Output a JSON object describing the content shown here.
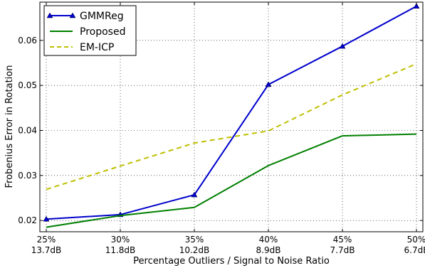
{
  "chart_data": {
    "type": "line",
    "xlabel": "Percentage Outliers / Signal to Noise Ratio",
    "ylabel": "Frobenius Error in Rotation",
    "categories": [
      {
        "top": "25%",
        "bottom": "13.7dB"
      },
      {
        "top": "30%",
        "bottom": "11.8dB"
      },
      {
        "top": "35%",
        "bottom": "10.2dB"
      },
      {
        "top": "40%",
        "bottom": "8.9dB"
      },
      {
        "top": "45%",
        "bottom": "7.7dB"
      },
      {
        "top": "50%",
        "bottom": "6.7dB"
      }
    ],
    "ylim": [
      0.0175,
      0.0685
    ],
    "yticks": [
      "0.02",
      "0.03",
      "0.04",
      "0.05",
      "0.06"
    ],
    "ytick_values": [
      0.02,
      0.03,
      0.04,
      0.05,
      0.06
    ],
    "grid": true,
    "legend_position": "top-left",
    "series": [
      {
        "name": "GMMReg",
        "color": "#0000cc",
        "style": "solid",
        "marker": "triangle",
        "values": [
          0.0203,
          0.0213,
          0.0257,
          0.0502,
          0.0587,
          0.0676
        ]
      },
      {
        "name": "Proposed",
        "color": "#007f00",
        "style": "solid",
        "marker": "none",
        "values": [
          0.0185,
          0.0211,
          0.0229,
          0.0322,
          0.0388,
          0.0392
        ]
      },
      {
        "name": "EM-ICP",
        "color": "#bfbf00",
        "style": "dashed",
        "marker": "none",
        "values": [
          0.0269,
          0.0321,
          0.0372,
          0.0399,
          0.0479,
          0.0548
        ]
      }
    ]
  }
}
